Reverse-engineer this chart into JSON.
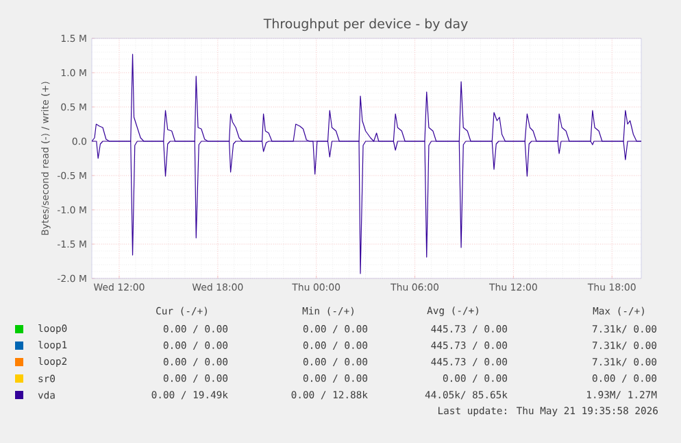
{
  "chart_data": {
    "type": "line",
    "title": "Throughput per device - by day",
    "ylabel": "Bytes/second read (-) / write (+)",
    "xlim": [
      "2026-05-20T10:20",
      "2026-05-21T19:47"
    ],
    "ylim": [
      -2000000,
      1500000
    ],
    "xticks": [
      {
        "value": "2026-05-20T12:00",
        "label": "Wed 12:00"
      },
      {
        "value": "2026-05-20T18:00",
        "label": "Wed 18:00"
      },
      {
        "value": "2026-05-21T00:00",
        "label": "Thu 00:00"
      },
      {
        "value": "2026-05-21T06:00",
        "label": "Thu 06:00"
      },
      {
        "value": "2026-05-21T12:00",
        "label": "Thu 12:00"
      },
      {
        "value": "2026-05-21T18:00",
        "label": "Thu 18:00"
      }
    ],
    "yticks": [
      {
        "value": -2000000,
        "label": "-2.0 M"
      },
      {
        "value": -1500000,
        "label": "-1.5 M"
      },
      {
        "value": -1000000,
        "label": "-1.0 M"
      },
      {
        "value": -500000,
        "label": "-0.5 M"
      },
      {
        "value": 0,
        "label": "0.0"
      },
      {
        "value": 500000,
        "label": "0.5 M"
      },
      {
        "value": 1000000,
        "label": "1.0 M"
      },
      {
        "value": 1500000,
        "label": "1.5 M"
      }
    ],
    "grid": true,
    "legend": "bottom",
    "series": [
      {
        "name": "loop0",
        "color": "#00cc00"
      },
      {
        "name": "loop1",
        "color": "#0066b3"
      },
      {
        "name": "loop2",
        "color": "#ff8000"
      },
      {
        "name": "sr0",
        "color": "#ffcc00"
      },
      {
        "name": "vda",
        "color": "#330099",
        "x": [
          "2026-05-20T10:20",
          "2026-05-20T10:30",
          "2026-05-20T10:36",
          "2026-05-20T10:48",
          "2026-05-20T11:00",
          "2026-05-20T11:12",
          "2026-05-20T11:24",
          "2026-05-20T12:42",
          "2026-05-20T12:49",
          "2026-05-20T12:54",
          "2026-05-20T13:06",
          "2026-05-20T13:18",
          "2026-05-20T13:30",
          "2026-05-20T14:42",
          "2026-05-20T14:49",
          "2026-05-20T14:57",
          "2026-05-20T15:12",
          "2026-05-20T15:24",
          "2026-05-20T16:36",
          "2026-05-20T16:41",
          "2026-05-20T16:48",
          "2026-05-20T17:00",
          "2026-05-20T17:12",
          "2026-05-20T17:24",
          "2026-05-20T18:42",
          "2026-05-20T18:47",
          "2026-05-20T18:54",
          "2026-05-20T19:06",
          "2026-05-20T19:18",
          "2026-05-20T19:30",
          "2026-05-20T20:42",
          "2026-05-20T20:47",
          "2026-05-20T20:54",
          "2026-05-20T21:06",
          "2026-05-20T21:18",
          "2026-05-20T22:36",
          "2026-05-20T22:45",
          "2026-05-20T23:00",
          "2026-05-20T23:12",
          "2026-05-20T23:24",
          "2026-05-20T23:36",
          "2026-05-21T00:42",
          "2026-05-21T00:49",
          "2026-05-21T00:57",
          "2026-05-21T01:12",
          "2026-05-21T01:24",
          "2026-05-21T02:36",
          "2026-05-21T02:41",
          "2026-05-21T02:48",
          "2026-05-21T03:00",
          "2026-05-21T03:18",
          "2026-05-21T03:30",
          "2026-05-21T03:40",
          "2026-05-21T03:48",
          "2026-05-21T04:42",
          "2026-05-21T04:49",
          "2026-05-21T04:57",
          "2026-05-21T05:12",
          "2026-05-21T05:24",
          "2026-05-21T06:36",
          "2026-05-21T06:43",
          "2026-05-21T06:51",
          "2026-05-21T07:06",
          "2026-05-21T07:18",
          "2026-05-21T08:42",
          "2026-05-21T08:49",
          "2026-05-21T08:57",
          "2026-05-21T09:12",
          "2026-05-21T09:24",
          "2026-05-21T10:42",
          "2026-05-21T10:49",
          "2026-05-21T11:00",
          "2026-05-21T11:09",
          "2026-05-21T11:18",
          "2026-05-21T11:30",
          "2026-05-21T12:42",
          "2026-05-21T12:50",
          "2026-05-21T13:00",
          "2026-05-21T13:12",
          "2026-05-21T13:24",
          "2026-05-21T14:42",
          "2026-05-21T14:47",
          "2026-05-21T14:57",
          "2026-05-21T15:12",
          "2026-05-21T15:24",
          "2026-05-21T16:42",
          "2026-05-21T16:49",
          "2026-05-21T16:57",
          "2026-05-21T17:12",
          "2026-05-21T17:24",
          "2026-05-21T18:42",
          "2026-05-21T18:49",
          "2026-05-21T18:57",
          "2026-05-21T19:06",
          "2026-05-21T19:18",
          "2026-05-21T19:30",
          "2026-05-21T19:47"
        ],
        "values": [
          0,
          50000,
          250000,
          220000,
          200000,
          30000,
          0,
          0,
          1270000,
          350000,
          200000,
          50000,
          0,
          0,
          450000,
          170000,
          150000,
          0,
          0,
          950000,
          200000,
          180000,
          30000,
          0,
          0,
          400000,
          280000,
          200000,
          50000,
          0,
          0,
          400000,
          150000,
          120000,
          0,
          0,
          250000,
          220000,
          180000,
          20000,
          0,
          0,
          450000,
          200000,
          150000,
          0,
          0,
          660000,
          300000,
          150000,
          50000,
          0,
          120000,
          0,
          0,
          400000,
          200000,
          150000,
          0,
          0,
          720000,
          200000,
          150000,
          0,
          0,
          870000,
          200000,
          150000,
          0,
          0,
          420000,
          300000,
          350000,
          100000,
          0,
          0,
          400000,
          200000,
          150000,
          0,
          0,
          400000,
          200000,
          150000,
          0,
          0,
          450000,
          200000,
          150000,
          0,
          0,
          450000,
          250000,
          300000,
          100000,
          0,
          0
        ]
      },
      {
        "color": "#330099",
        "x": [
          "2026-05-20T10:20",
          "2026-05-20T10:37",
          "2026-05-20T10:43",
          "2026-05-20T10:51",
          "2026-05-20T11:00",
          "2026-05-20T12:42",
          "2026-05-20T12:49",
          "2026-05-20T12:57",
          "2026-05-20T13:06",
          "2026-05-20T14:42",
          "2026-05-20T14:49",
          "2026-05-20T14:57",
          "2026-05-20T15:06",
          "2026-05-20T16:36",
          "2026-05-20T16:41",
          "2026-05-20T16:51",
          "2026-05-20T17:00",
          "2026-05-20T18:42",
          "2026-05-20T18:47",
          "2026-05-20T18:57",
          "2026-05-20T19:06",
          "2026-05-20T20:42",
          "2026-05-20T20:47",
          "2026-05-20T20:57",
          "2026-05-20T21:06",
          "2026-05-20T23:48",
          "2026-05-20T23:55",
          "2026-05-21T00:03",
          "2026-05-21T00:42",
          "2026-05-21T00:49",
          "2026-05-21T00:57",
          "2026-05-21T02:36",
          "2026-05-21T02:41",
          "2026-05-21T02:51",
          "2026-05-21T03:00",
          "2026-05-21T04:42",
          "2026-05-21T04:49",
          "2026-05-21T04:57",
          "2026-05-21T06:36",
          "2026-05-21T06:43",
          "2026-05-21T06:51",
          "2026-05-21T07:00",
          "2026-05-21T08:42",
          "2026-05-21T08:49",
          "2026-05-21T08:57",
          "2026-05-21T09:06",
          "2026-05-21T10:42",
          "2026-05-21T10:49",
          "2026-05-21T10:57",
          "2026-05-21T11:06",
          "2026-05-21T12:42",
          "2026-05-21T12:50",
          "2026-05-21T12:57",
          "2026-05-21T13:06",
          "2026-05-21T14:42",
          "2026-05-21T14:47",
          "2026-05-21T14:54",
          "2026-05-21T16:42",
          "2026-05-21T16:49",
          "2026-05-21T16:54",
          "2026-05-21T18:42",
          "2026-05-21T18:49",
          "2026-05-21T18:57",
          "2026-05-21T19:47"
        ],
        "values": [
          0,
          0,
          -250000,
          -40000,
          0,
          0,
          -1660000,
          -60000,
          0,
          0,
          -510000,
          -40000,
          0,
          0,
          -1410000,
          -50000,
          0,
          0,
          -450000,
          -40000,
          0,
          0,
          -150000,
          -20000,
          0,
          0,
          -480000,
          0,
          0,
          -230000,
          0,
          0,
          -1930000,
          -60000,
          0,
          0,
          -130000,
          0,
          0,
          -1690000,
          -60000,
          0,
          0,
          -1550000,
          -50000,
          0,
          0,
          -410000,
          -40000,
          0,
          0,
          -510000,
          -40000,
          0,
          0,
          -180000,
          0,
          0,
          -50000,
          0,
          0,
          -270000,
          0,
          0
        ]
      }
    ],
    "annotations": [
      "Cur (-/+)",
      "Min (-/+)",
      "Avg (-/+)",
      "Max (-/+)",
      "0.00 /  0.00",
      "0.00 /  0.00",
      "445.73 /  0.00",
      "7.31k/  0.00",
      "0.00 /  0.00",
      "0.00 /  0.00",
      "445.73 /  0.00",
      "7.31k/  0.00",
      "0.00 /  0.00",
      "0.00 /  0.00",
      "445.73 /  0.00",
      "7.31k/  0.00",
      "0.00 /  0.00",
      "0.00 /  0.00",
      "0.00 /  0.00",
      "0.00 /  0.00",
      "0.00 / 19.49k",
      "0.00 / 12.88k",
      "44.05k/ 85.65k",
      "1.93M/  1.27M",
      "Last update: Thu May 21 19:35:58 2026"
    ]
  }
}
